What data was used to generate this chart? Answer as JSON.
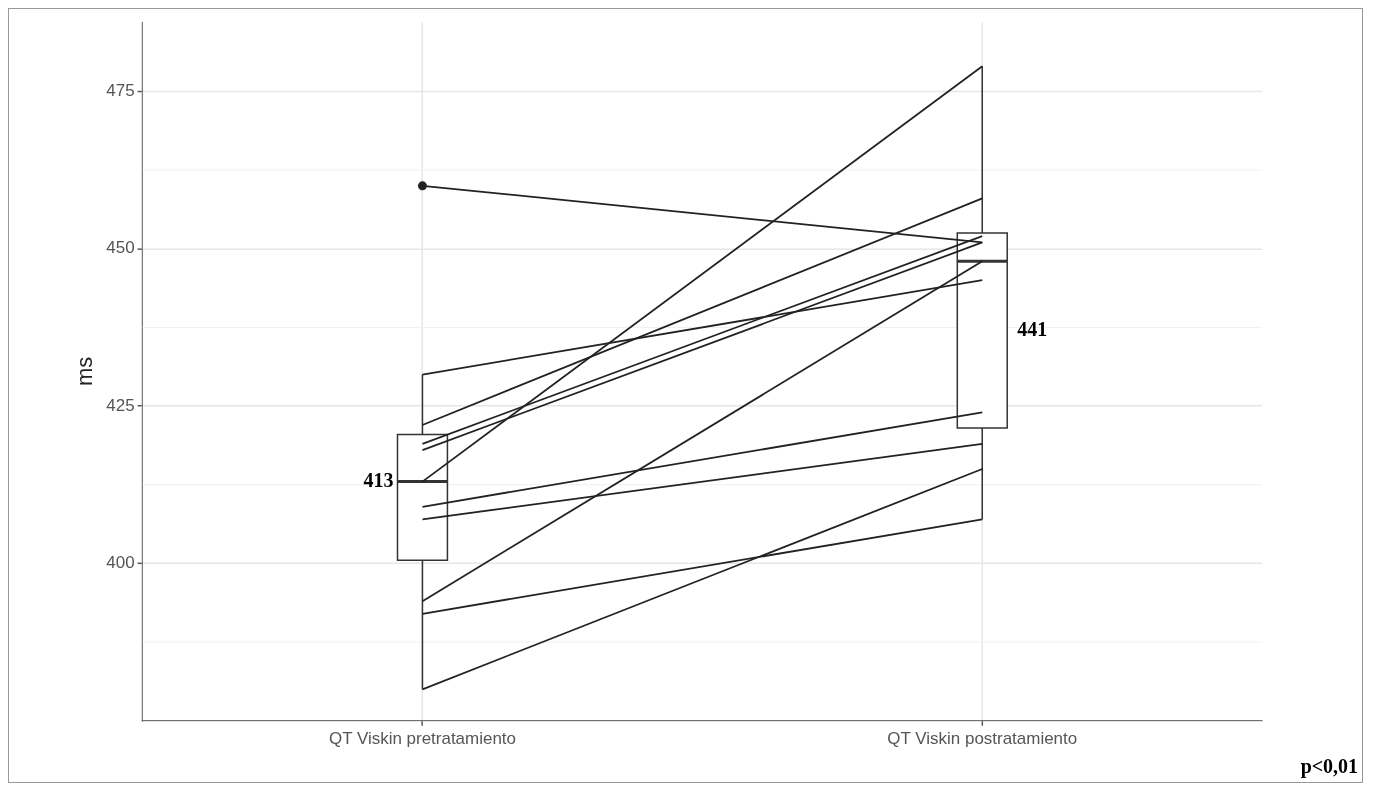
{
  "chart_data": {
    "type": "box",
    "ylabel": "ms",
    "categories": [
      "QT Viskin pretratamiento",
      "QT Viskin postratamiento"
    ],
    "boxes": [
      {
        "low": 380,
        "q1": 400.5,
        "median": 413,
        "q3": 420.5,
        "high": 430,
        "outliers": [
          460
        ]
      },
      {
        "low": 407,
        "q1": 421.5,
        "median": 448,
        "q3": 452.5,
        "high": 479
      }
    ],
    "series": [
      {
        "type": "line",
        "color": "#222222",
        "values": [
          460,
          451
        ]
      },
      {
        "type": "line",
        "color": "#222222",
        "values": [
          430,
          445
        ]
      },
      {
        "type": "line",
        "color": "#222222",
        "values": [
          422,
          458
        ]
      },
      {
        "type": "line",
        "color": "#222222",
        "values": [
          419,
          452
        ]
      },
      {
        "type": "line",
        "color": "#222222",
        "values": [
          418,
          451
        ]
      },
      {
        "type": "line",
        "color": "#222222",
        "values": [
          413,
          479
        ]
      },
      {
        "type": "line",
        "color": "#222222",
        "values": [
          409,
          424
        ]
      },
      {
        "type": "line",
        "color": "#222222",
        "values": [
          407,
          419
        ]
      },
      {
        "type": "line",
        "color": "#222222",
        "values": [
          394,
          448
        ]
      },
      {
        "type": "line",
        "color": "#222222",
        "values": [
          392,
          407
        ]
      },
      {
        "type": "line",
        "color": "#222222",
        "values": [
          380,
          415
        ]
      }
    ],
    "ylim": [
      375,
      486
    ],
    "yticks": [
      400,
      425,
      450,
      475
    ],
    "grid": true,
    "legend": false,
    "marker": "none",
    "annotations": [
      {
        "text": "413",
        "x": "QT Viskin pretratamiento",
        "y": 413
      },
      "441",
      "p<0,01"
    ]
  }
}
